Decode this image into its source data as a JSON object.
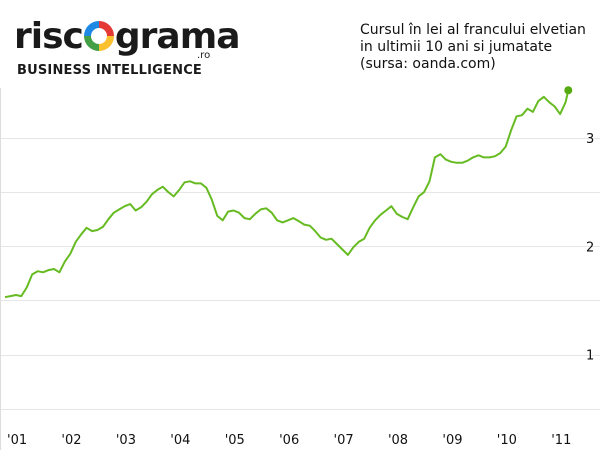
{
  "logo": {
    "word_before": "risc",
    "word_after": "grama",
    "domain": ".ro",
    "tagline": "BUSINESS INTELLIGENCE"
  },
  "caption": {
    "line1": "Cursul în lei al francului elvetian",
    "line2": "in ultimii 10 ani si jumatate",
    "line3": "(sursa: oanda.com)"
  },
  "chart_data": {
    "type": "line",
    "title": "Cursul în lei al francului elvetian in ultimii 10 ani si jumatate",
    "source": "(sursa: oanda.com)",
    "xlabel": "",
    "ylabel": "",
    "xlim": [
      2001.0,
      2011.4
    ],
    "ylim": [
      0.35,
      3.35
    ],
    "x_ticks": [
      {
        "value": 2001.0,
        "label": "'01"
      },
      {
        "value": 2002.0,
        "label": "'02"
      },
      {
        "value": 2003.0,
        "label": "'03"
      },
      {
        "value": 2004.0,
        "label": "'04"
      },
      {
        "value": 2005.0,
        "label": "'05"
      },
      {
        "value": 2006.0,
        "label": "'06"
      },
      {
        "value": 2007.0,
        "label": "'07"
      },
      {
        "value": 2008.0,
        "label": "'08"
      },
      {
        "value": 2009.0,
        "label": "'09"
      },
      {
        "value": 2010.0,
        "label": "'10"
      },
      {
        "value": 2011.0,
        "label": "'11"
      }
    ],
    "y_ticks": [
      {
        "value": 1,
        "label": "1"
      },
      {
        "value": 2,
        "label": "2"
      },
      {
        "value": 3,
        "label": "3"
      }
    ],
    "y_grid": [
      0.5,
      1.0,
      1.5,
      2.0,
      2.5,
      3.0
    ],
    "grid": true,
    "line_color": "#66bb22",
    "marker_color": "#55aa11",
    "series": [
      {
        "x": [
          2001.0,
          2001.1,
          2001.2,
          2001.3,
          2001.4,
          2001.5,
          2001.6,
          2001.7,
          2001.8,
          2001.9,
          2002.0,
          2002.1,
          2002.2,
          2002.3,
          2002.4,
          2002.5,
          2002.6,
          2002.7,
          2002.8,
          2002.9,
          2003.0,
          2003.1,
          2003.2,
          2003.3,
          2003.4,
          2003.5,
          2003.6,
          2003.7,
          2003.8,
          2003.9,
          2004.0,
          2004.1,
          2004.2,
          2004.3,
          2004.4,
          2004.5,
          2004.6,
          2004.7,
          2004.8,
          2004.9,
          2005.0,
          2005.1,
          2005.2,
          2005.3,
          2005.4,
          2005.5,
          2005.6,
          2005.7,
          2005.8,
          2005.9,
          2006.0,
          2006.1,
          2006.2,
          2006.3,
          2006.4,
          2006.5,
          2006.6,
          2006.7,
          2006.8,
          2006.9,
          2007.0,
          2007.1,
          2007.2,
          2007.3,
          2007.4,
          2007.5,
          2007.6,
          2007.7,
          2007.8,
          2007.9,
          2008.0,
          2008.1,
          2008.2,
          2008.3,
          2008.4,
          2008.5,
          2008.6,
          2008.7,
          2008.8,
          2008.9,
          2009.0,
          2009.1,
          2009.2,
          2009.3,
          2009.4,
          2009.5,
          2009.6,
          2009.7,
          2009.8,
          2009.9,
          2010.0,
          2010.1,
          2010.2,
          2010.3,
          2010.4,
          2010.5,
          2010.6,
          2010.7,
          2010.8,
          2010.9,
          2011.0,
          2011.1,
          2011.2,
          2011.3,
          2011.35
        ],
        "y": [
          1.53,
          1.54,
          1.55,
          1.54,
          1.62,
          1.74,
          1.77,
          1.76,
          1.78,
          1.79,
          1.76,
          1.86,
          1.93,
          2.04,
          2.11,
          2.17,
          2.14,
          2.15,
          2.18,
          2.25,
          2.31,
          2.34,
          2.37,
          2.39,
          2.33,
          2.36,
          2.41,
          2.48,
          2.52,
          2.55,
          2.5,
          2.46,
          2.52,
          2.59,
          2.6,
          2.58,
          2.58,
          2.54,
          2.43,
          2.28,
          2.24,
          2.32,
          2.33,
          2.31,
          2.26,
          2.25,
          2.3,
          2.34,
          2.35,
          2.31,
          2.24,
          2.22,
          2.24,
          2.26,
          2.23,
          2.2,
          2.19,
          2.14,
          2.08,
          2.06,
          2.07,
          2.02,
          1.97,
          1.92,
          1.99,
          2.04,
          2.07,
          2.17,
          2.24,
          2.29,
          2.33,
          2.37,
          2.3,
          2.27,
          2.25,
          2.36,
          2.46,
          2.5,
          2.6,
          2.82,
          2.85,
          2.8,
          2.78,
          2.77,
          2.77,
          2.79,
          2.82,
          2.84,
          2.82,
          2.82,
          2.83,
          2.86,
          2.92,
          3.07,
          3.2,
          3.21,
          3.27,
          3.24,
          3.34,
          3.38,
          3.33,
          3.29,
          3.22,
          3.33,
          3.44
        ]
      }
    ],
    "last_point": {
      "x": 2011.35,
      "y": 3.44
    }
  }
}
